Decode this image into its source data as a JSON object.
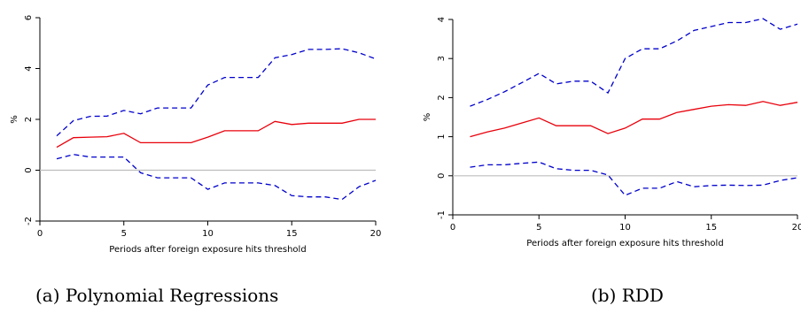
{
  "captions": {
    "a": "(a) Polynomial Regressions",
    "b": "(b) RDD"
  },
  "colors": {
    "estimate": "#e8000b",
    "bounds": "#0000cc",
    "zero_line": "#bdbdbd",
    "axis": "#000000"
  },
  "chart_data": [
    {
      "type": "line",
      "title": "",
      "xlabel": "Periods after foreign exposure hits threshold",
      "ylabel": "%",
      "xlim": [
        0,
        20
      ],
      "ylim": [
        -2,
        6
      ],
      "xticks": [
        0,
        5,
        10,
        15,
        20
      ],
      "yticks": [
        -2,
        0,
        2,
        4,
        6
      ],
      "zero_line": true,
      "x": [
        1,
        2,
        3,
        4,
        5,
        6,
        7,
        8,
        9,
        10,
        11,
        12,
        13,
        14,
        15,
        16,
        17,
        18,
        19,
        20
      ],
      "series": [
        {
          "role": "upper",
          "style": "dashed",
          "values": [
            1.35,
            1.95,
            2.12,
            2.13,
            2.35,
            2.22,
            2.45,
            2.45,
            2.45,
            3.35,
            3.65,
            3.65,
            3.65,
            4.42,
            4.55,
            4.75,
            4.75,
            4.78,
            4.62,
            4.38
          ]
        },
        {
          "role": "estimate",
          "style": "solid",
          "values": [
            0.9,
            1.28,
            1.3,
            1.32,
            1.45,
            1.08,
            1.08,
            1.08,
            1.08,
            1.3,
            1.55,
            1.55,
            1.55,
            1.92,
            1.8,
            1.85,
            1.85,
            1.85,
            2.0,
            2.0
          ]
        },
        {
          "role": "lower",
          "style": "dashed",
          "values": [
            0.45,
            0.62,
            0.52,
            0.52,
            0.52,
            -0.1,
            -0.3,
            -0.3,
            -0.3,
            -0.75,
            -0.5,
            -0.5,
            -0.5,
            -0.6,
            -1.0,
            -1.05,
            -1.05,
            -1.15,
            -0.65,
            -0.4
          ]
        }
      ]
    },
    {
      "type": "line",
      "title": "",
      "xlabel": "Periods after foreign exposure hits threshold",
      "ylabel": "%",
      "xlim": [
        0,
        20
      ],
      "ylim": [
        -1,
        4
      ],
      "xticks": [
        0,
        5,
        10,
        15,
        20
      ],
      "yticks": [
        -1,
        0,
        1,
        2,
        3,
        4
      ],
      "zero_line": true,
      "x": [
        1,
        2,
        3,
        4,
        5,
        6,
        7,
        8,
        9,
        10,
        11,
        12,
        13,
        14,
        15,
        16,
        17,
        18,
        19,
        20
      ],
      "series": [
        {
          "role": "upper",
          "style": "dashed",
          "values": [
            1.78,
            1.95,
            2.15,
            2.38,
            2.62,
            2.35,
            2.42,
            2.42,
            2.12,
            3.0,
            3.25,
            3.25,
            3.45,
            3.72,
            3.82,
            3.92,
            3.92,
            4.02,
            3.75,
            3.88
          ]
        },
        {
          "role": "estimate",
          "style": "solid",
          "values": [
            1.0,
            1.12,
            1.22,
            1.35,
            1.48,
            1.28,
            1.28,
            1.28,
            1.08,
            1.22,
            1.45,
            1.45,
            1.62,
            1.7,
            1.78,
            1.82,
            1.8,
            1.9,
            1.8,
            1.88
          ]
        },
        {
          "role": "lower",
          "style": "dashed",
          "values": [
            0.22,
            0.28,
            0.28,
            0.32,
            0.35,
            0.18,
            0.14,
            0.14,
            0.02,
            -0.5,
            -0.32,
            -0.32,
            -0.15,
            -0.28,
            -0.25,
            -0.24,
            -0.25,
            -0.24,
            -0.12,
            -0.05
          ]
        }
      ]
    }
  ]
}
